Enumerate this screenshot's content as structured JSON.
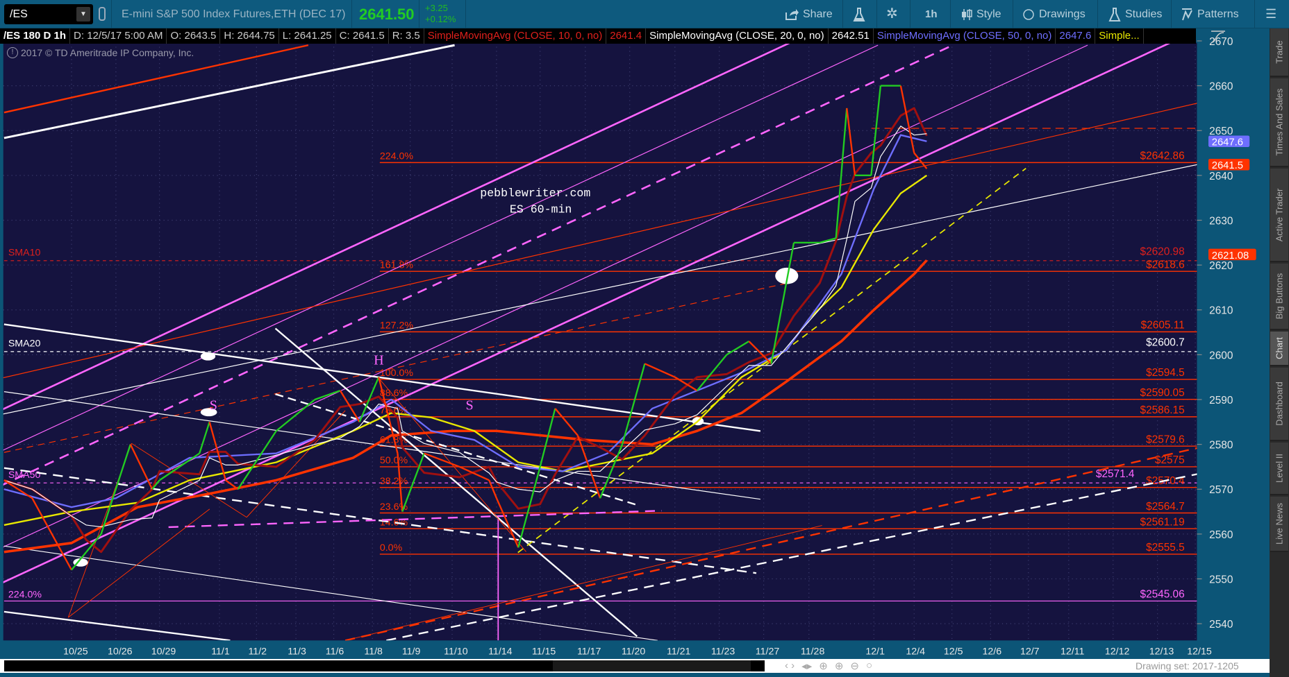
{
  "toolbar": {
    "symbol": "/ES",
    "description": "E-mini S&P 500 Index Futures,ETH (DEC 17)",
    "last": "2641.50",
    "change": "+3.25",
    "change_pct": "+0.12%",
    "share": "Share",
    "timeframe": "1h",
    "style": "Style",
    "drawings": "Drawings",
    "studies": "Studies",
    "patterns": "Patterns"
  },
  "infobar": {
    "symbol_period": "/ES 180 D 1h",
    "date": "D: 12/5/17 5:00 AM",
    "open": "O: 2643.5",
    "high": "H: 2644.75",
    "low": "L: 2641.25",
    "close": "C: 2641.5",
    "range": "R: 3.5",
    "studies": [
      {
        "label": "SimpleMovingAvg (CLOSE, 10, 0, no)",
        "value": "2641.4",
        "color": "#e0201c"
      },
      {
        "label": "SimpleMovingAvg (CLOSE, 20, 0, no)",
        "value": "2642.51",
        "color": "#ffffff"
      },
      {
        "label": "SimpleMovingAvg (CLOSE, 50, 0, no)",
        "value": "2647.6",
        "color": "#6e6eff"
      },
      {
        "label": "Simple...",
        "color": "#e8e800"
      }
    ]
  },
  "copyright": "2017 © TD Ameritrade IP Company, Inc.",
  "watermark": {
    "line1": "pebblewriter.com",
    "line2": "ES 60-min"
  },
  "side_tabs": [
    "Trade",
    "Times And Sales",
    "Active Trader",
    "Big Buttons",
    "Chart",
    "Dashboard",
    "Level II",
    "Live News"
  ],
  "active_tab": "Chart",
  "footer": {
    "drawing_set": "Drawing set: 2017-1205"
  },
  "colors": {
    "background": "#15133f",
    "up": "#22cc22",
    "down": "#ff3300",
    "fib": "#ff3300",
    "sma10": "#e0201c",
    "sma20": "#ffffff",
    "sma50": "#ff66ff",
    "magenta": "#ff66ff",
    "yellow": "#e8e800",
    "blue": "#6e6eff",
    "heavy": "#ff3300"
  },
  "chart_data": {
    "type": "line",
    "x_ticks": [
      "10/25",
      "10/26",
      "10/29",
      "11/1",
      "11/2",
      "11/3",
      "11/6",
      "11/8",
      "11/9",
      "11/10",
      "11/14",
      "11/15",
      "11/17",
      "11/20",
      "11/21",
      "11/23",
      "11/27",
      "11/28",
      "12/1",
      "12/4",
      "12/5",
      "12/6",
      "12/7",
      "12/11",
      "12/12",
      "12/13",
      "12/15"
    ],
    "y_ticks": [
      2540,
      2550,
      2560,
      2570,
      2580,
      2590,
      2600,
      2610,
      2620,
      2630,
      2640,
      2650,
      2660,
      2670
    ],
    "ylim": [
      2537,
      2672
    ],
    "grid": true,
    "price": [
      [
        "10/24 00",
        2572
      ],
      [
        "10/24 10",
        2568
      ],
      [
        "10/25 00",
        2552
      ],
      [
        "10/25 08",
        2556
      ],
      [
        "10/25 16",
        2560
      ],
      [
        "10/26 08",
        2580
      ],
      [
        "10/26 20",
        2570
      ],
      [
        "10/29 00",
        2572
      ],
      [
        "10/29 16",
        2578
      ],
      [
        "10/29 20",
        2585
      ],
      [
        "11/1 04",
        2572
      ],
      [
        "11/1 12",
        2570
      ],
      [
        "11/2 12",
        2583
      ],
      [
        "11/3 12",
        2590
      ],
      [
        "11/6 04",
        2592
      ],
      [
        "11/6 16",
        2585
      ],
      [
        "11/8 04",
        2595
      ],
      [
        "11/8 16",
        2578
      ],
      [
        "11/8 19",
        2565
      ],
      [
        "11/9 08",
        2578
      ],
      [
        "11/10 04",
        2575
      ],
      [
        "11/10 20",
        2572
      ],
      [
        "11/14 00",
        2568
      ],
      [
        "11/14 12",
        2557
      ],
      [
        "11/15 00",
        2575
      ],
      [
        "11/15 08",
        2588
      ],
      [
        "11/15 20",
        2582
      ],
      [
        "11/17 08",
        2568
      ],
      [
        "11/17 20",
        2580
      ],
      [
        "11/20 08",
        2598
      ],
      [
        "11/21 00",
        2595
      ],
      [
        "11/21 12",
        2592
      ],
      [
        "11/23 04",
        2600
      ],
      [
        "11/23 16",
        2603
      ],
      [
        "11/27 04",
        2598
      ],
      [
        "11/27 16",
        2625
      ],
      [
        "11/28 04",
        2625
      ],
      [
        "11/28 10",
        2626
      ],
      [
        "11/28 14",
        2655
      ],
      [
        "11/28 17",
        2640
      ],
      [
        "11/28 23",
        2640
      ],
      [
        "12/1 04",
        2660
      ],
      [
        "12/1 16",
        2660
      ],
      [
        "12/4 00",
        2645
      ],
      [
        "12/4 08",
        2641.5
      ]
    ],
    "sma_heavy": [
      [
        "10/24 00",
        2556
      ],
      [
        "10/25 00",
        2558
      ],
      [
        "10/26 12",
        2566
      ],
      [
        "10/29 20",
        2569
      ],
      [
        "11/2 12",
        2572
      ],
      [
        "11/6 12",
        2577
      ],
      [
        "11/8 12",
        2582
      ],
      [
        "11/10 00",
        2583
      ],
      [
        "11/14 00",
        2583
      ],
      [
        "11/17 00",
        2581
      ],
      [
        "11/20 12",
        2580
      ],
      [
        "11/21 12",
        2583
      ],
      [
        "11/23 12",
        2587
      ],
      [
        "11/27 12",
        2594
      ],
      [
        "11/28 12",
        2603
      ],
      [
        "12/1 00",
        2610
      ],
      [
        "12/4 00",
        2618
      ],
      [
        "12/4 08",
        2621.08
      ]
    ],
    "sma_yellow": [
      [
        "10/24 00",
        2562
      ],
      [
        "10/25 00",
        2565
      ],
      [
        "10/26 12",
        2567
      ],
      [
        "10/29 12",
        2572
      ],
      [
        "11/2 12",
        2576
      ],
      [
        "11/6 12",
        2583
      ],
      [
        "11/8 12",
        2587
      ],
      [
        "11/9 12",
        2586
      ],
      [
        "11/10 12",
        2583
      ],
      [
        "11/14 12",
        2576
      ],
      [
        "11/15 12",
        2574
      ],
      [
        "11/17 12",
        2576
      ],
      [
        "11/20 12",
        2578
      ],
      [
        "11/21 12",
        2585
      ],
      [
        "11/23 12",
        2595
      ],
      [
        "11/27 12",
        2601
      ],
      [
        "11/28 00",
        2608
      ],
      [
        "11/28 12",
        2615
      ],
      [
        "12/1 00",
        2628
      ],
      [
        "12/1 16",
        2636
      ],
      [
        "12/4 08",
        2640
      ]
    ],
    "sma50": [
      [
        "10/24 00",
        2570
      ],
      [
        "10/25 00",
        2566
      ],
      [
        "10/26 00",
        2568
      ],
      [
        "10/29 12",
        2577
      ],
      [
        "11/2 12",
        2578
      ],
      [
        "11/6 12",
        2585
      ],
      [
        "11/8 12",
        2590
      ],
      [
        "11/9 12",
        2583
      ],
      [
        "11/10 12",
        2581
      ],
      [
        "11/14 12",
        2575
      ],
      [
        "11/15 12",
        2574
      ],
      [
        "11/17 12",
        2578
      ],
      [
        "11/20 12",
        2588
      ],
      [
        "11/21 12",
        2592
      ],
      [
        "11/23 12",
        2596
      ],
      [
        "11/27 12",
        2601
      ],
      [
        "11/28 12",
        2618
      ],
      [
        "12/1 00",
        2637
      ],
      [
        "12/1 16",
        2649
      ],
      [
        "12/4 08",
        2647.6
      ]
    ],
    "levels": [
      {
        "price": 2650.5,
        "label": "",
        "kind": "red-dash"
      },
      {
        "price": 2642.86,
        "label": "$2642.86",
        "pct": "224.0%",
        "kind": "fib"
      },
      {
        "price": 2620.98,
        "label": "$2620.98",
        "name": "SMA10",
        "kind": "sma10"
      },
      {
        "price": 2618.6,
        "label": "$2618.6",
        "pct": "161.8%",
        "kind": "fib"
      },
      {
        "price": 2605.11,
        "label": "$2605.11",
        "pct": "127.2%",
        "kind": "fib"
      },
      {
        "price": 2600.7,
        "label": "$2600.7",
        "name": "SMA20",
        "kind": "sma20"
      },
      {
        "price": 2594.5,
        "label": "$2594.5",
        "pct": "100.0%",
        "kind": "fib"
      },
      {
        "price": 2590.05,
        "label": "$2590.05",
        "pct": "88.6%",
        "kind": "fib"
      },
      {
        "price": 2586.15,
        "label": "$2586.15",
        "pct": "78.6%",
        "kind": "fib"
      },
      {
        "price": 2579.6,
        "label": "$2579.6",
        "pct": "61.8%",
        "kind": "fib"
      },
      {
        "price": 2575,
        "label": "$2575",
        "pct": "50.0%",
        "kind": "fib"
      },
      {
        "price": 2571.4,
        "label": "$2571.4",
        "name": "SMA50",
        "kind": "sma50"
      },
      {
        "price": 2570.4,
        "label": "$2570.4",
        "pct": "38.2%",
        "kind": "fib"
      },
      {
        "price": 2564.7,
        "label": "$2564.7",
        "pct": "23.6%",
        "kind": "fib"
      },
      {
        "price": 2561.19,
        "label": "$2561.19",
        "pct": "14.6%",
        "kind": "fib"
      },
      {
        "price": 2555.5,
        "label": "$2555.5",
        "pct": "0.0%",
        "kind": "fib"
      },
      {
        "price": 2545.06,
        "label": "$2545.06",
        "pct": "224.0%",
        "kind": "fib2"
      }
    ],
    "pattern_labels": [
      {
        "text": "S",
        "t": "10/29 22"
      },
      {
        "text": "H",
        "t": "11/8 04"
      },
      {
        "text": "S",
        "t": "11/10 10"
      }
    ],
    "axis_markers": [
      {
        "label": "2647.6",
        "price": 2647.6,
        "color": "#6e6eff"
      },
      {
        "label": "2641.5",
        "price": 2641.5,
        "color": "#ff3300"
      },
      {
        "label": "2621.08",
        "price": 2621.08,
        "color": "#ff3300"
      }
    ]
  }
}
